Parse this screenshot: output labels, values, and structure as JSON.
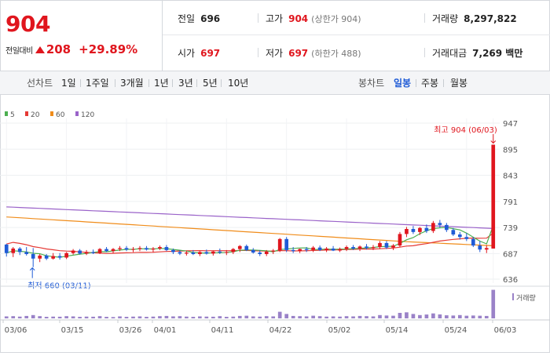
{
  "quote": {
    "price": "904",
    "change_label": "전일대비",
    "change_value": "208",
    "change_pct": "+29.89%"
  },
  "stats": {
    "prev_label": "전일",
    "prev_value": "696",
    "high_label": "고가",
    "high_value": "904",
    "high_sub": "(상한가 904)",
    "volume_label": "거래량",
    "volume_value": "8,297,822",
    "open_label": "시가",
    "open_value": "697",
    "low_label": "저가",
    "low_value": "697",
    "low_sub": "(하한가 488)",
    "amount_label": "거래대금",
    "amount_value": "7,269 백만"
  },
  "toolbar": {
    "line_chart_label": "선차트",
    "periods": [
      "1일",
      "1주일",
      "3개월",
      "1년",
      "3년",
      "5년",
      "10년"
    ],
    "candle_chart_label": "봉차트",
    "candle_periods": [
      "일봉",
      "주봉",
      "월봉"
    ],
    "active_candle": "일봉"
  },
  "chart_data": {
    "type": "candlestick",
    "legend": [
      "5",
      "20",
      "60",
      "120"
    ],
    "colors": {
      "ma5": "#4caf50",
      "ma20": "#e53935",
      "ma60": "#f08c1a",
      "ma120": "#9a63c9",
      "up": "#e0161e",
      "down": "#1f5bd6",
      "volume": "#9a82c8"
    },
    "y_ticks": [
      "947",
      "895",
      "843",
      "791",
      "739",
      "687",
      "636"
    ],
    "ylim": [
      636,
      947
    ],
    "x_ticks": [
      "03/06",
      "03/15",
      "03/26",
      "04/01",
      "04/11",
      "04/22",
      "05/02",
      "05/14",
      "05/24",
      "06/03"
    ],
    "high_annotation": "최고 904 (06/03)",
    "low_annotation": "최저 660 (03/11)",
    "volume_label": "거래량",
    "candles": [
      [
        705,
        706,
        681,
        688
      ],
      [
        688,
        700,
        680,
        697
      ],
      [
        697,
        700,
        684,
        690
      ],
      [
        690,
        700,
        683,
        686
      ],
      [
        686,
        698,
        660,
        677
      ],
      [
        677,
        686,
        670,
        683
      ],
      [
        683,
        686,
        674,
        677
      ],
      [
        677,
        688,
        675,
        682
      ],
      [
        682,
        688,
        675,
        679
      ],
      [
        679,
        690,
        676,
        688
      ],
      [
        688,
        696,
        685,
        693
      ],
      [
        693,
        696,
        685,
        687
      ],
      [
        687,
        694,
        684,
        690
      ],
      [
        690,
        695,
        686,
        688
      ],
      [
        688,
        698,
        686,
        696
      ],
      [
        696,
        700,
        690,
        692
      ],
      [
        692,
        698,
        688,
        696
      ],
      [
        696,
        702,
        692,
        698
      ],
      [
        698,
        702,
        692,
        695
      ],
      [
        695,
        700,
        690,
        696
      ],
      [
        696,
        702,
        692,
        698
      ],
      [
        698,
        702,
        693,
        695
      ],
      [
        695,
        700,
        689,
        697
      ],
      [
        697,
        703,
        694,
        700
      ],
      [
        700,
        704,
        692,
        694
      ],
      [
        694,
        697,
        686,
        690
      ],
      [
        690,
        694,
        684,
        687
      ],
      [
        687,
        693,
        683,
        689
      ],
      [
        689,
        694,
        684,
        686
      ],
      [
        686,
        692,
        682,
        690
      ],
      [
        690,
        695,
        685,
        687
      ],
      [
        687,
        693,
        683,
        691
      ],
      [
        691,
        697,
        686,
        689
      ],
      [
        689,
        694,
        684,
        690
      ],
      [
        690,
        698,
        686,
        696
      ],
      [
        696,
        704,
        690,
        702
      ],
      [
        702,
        705,
        692,
        694
      ],
      [
        694,
        698,
        687,
        689
      ],
      [
        689,
        694,
        682,
        686
      ],
      [
        686,
        694,
        682,
        691
      ],
      [
        691,
        696,
        686,
        693
      ],
      [
        693,
        718,
        690,
        716
      ],
      [
        716,
        720,
        690,
        694
      ],
      [
        694,
        700,
        688,
        692
      ],
      [
        692,
        697,
        688,
        696
      ],
      [
        696,
        700,
        690,
        694
      ],
      [
        694,
        702,
        690,
        699
      ],
      [
        699,
        703,
        692,
        694
      ],
      [
        694,
        700,
        690,
        697
      ],
      [
        697,
        702,
        692,
        693
      ],
      [
        693,
        699,
        690,
        696
      ],
      [
        696,
        703,
        692,
        700
      ],
      [
        700,
        704,
        694,
        697
      ],
      [
        697,
        703,
        692,
        701
      ],
      [
        701,
        706,
        695,
        698
      ],
      [
        698,
        704,
        694,
        700
      ],
      [
        700,
        712,
        696,
        708
      ],
      [
        708,
        712,
        696,
        699
      ],
      [
        699,
        706,
        694,
        703
      ],
      [
        703,
        730,
        700,
        726
      ],
      [
        726,
        740,
        720,
        736
      ],
      [
        736,
        742,
        726,
        730
      ],
      [
        730,
        740,
        724,
        738
      ],
      [
        738,
        745,
        728,
        732
      ],
      [
        732,
        752,
        728,
        748
      ],
      [
        748,
        754,
        738,
        744
      ],
      [
        744,
        748,
        730,
        734
      ],
      [
        734,
        738,
        722,
        725
      ],
      [
        725,
        730,
        715,
        720
      ],
      [
        720,
        728,
        712,
        716
      ],
      [
        716,
        720,
        700,
        703
      ],
      [
        703,
        712,
        690,
        695
      ],
      [
        695,
        704,
        688,
        698
      ],
      [
        697,
        904,
        697,
        904
      ]
    ],
    "volumes": [
      0.18,
      0.2,
      0.16,
      0.22,
      0.3,
      0.2,
      0.14,
      0.16,
      0.15,
      0.2,
      0.18,
      0.14,
      0.16,
      0.15,
      0.2,
      0.14,
      0.12,
      0.18,
      0.14,
      0.16,
      0.18,
      0.14,
      0.16,
      0.2,
      0.22,
      0.18,
      0.2,
      0.16,
      0.14,
      0.18,
      0.16,
      0.15,
      0.2,
      0.14,
      0.16,
      0.22,
      0.24,
      0.18,
      0.16,
      0.2,
      0.18,
      0.6,
      0.4,
      0.22,
      0.2,
      0.18,
      0.24,
      0.2,
      0.16,
      0.18,
      0.16,
      0.2,
      0.18,
      0.22,
      0.2,
      0.18,
      0.3,
      0.26,
      0.24,
      0.5,
      0.55,
      0.4,
      0.3,
      0.35,
      0.45,
      0.36,
      0.28,
      0.26,
      0.3,
      0.24,
      0.26,
      0.24,
      0.22,
      2.6
    ]
  }
}
